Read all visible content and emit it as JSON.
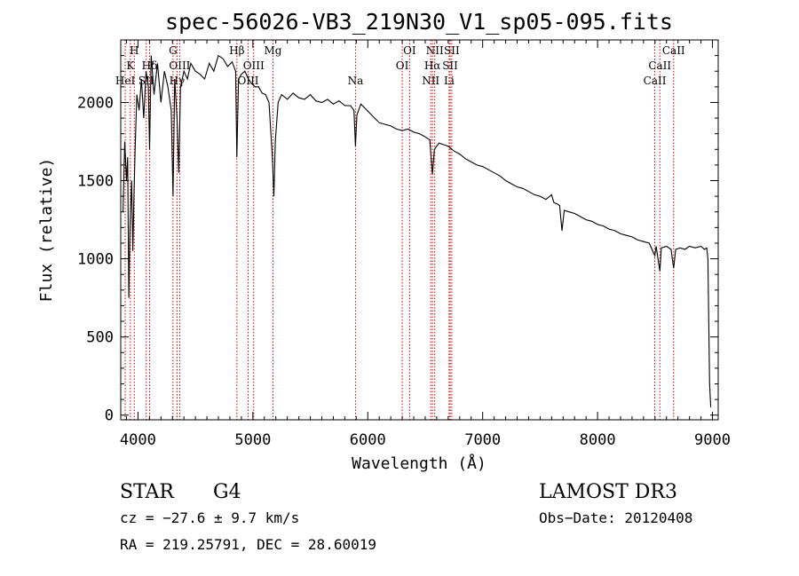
{
  "chart_data": {
    "type": "line",
    "title": "spec-56026-VB3_219N30_V1_sp05-095.fits",
    "xlabel": "Wavelength (Å)",
    "ylabel": "Flux (relative)",
    "xlim": [
      3850,
      9050
    ],
    "ylim": [
      -30,
      2400
    ],
    "xticks": [
      4000,
      5000,
      6000,
      7000,
      8000,
      9000
    ],
    "yticks": [
      0,
      500,
      1000,
      1500,
      2000
    ],
    "series": [
      {
        "name": "spectrum",
        "points": [
          [
            3870,
            1300
          ],
          [
            3885,
            1750
          ],
          [
            3900,
            1500
          ],
          [
            3910,
            1650
          ],
          [
            3920,
            750
          ],
          [
            3930,
            1200
          ],
          [
            3945,
            1500
          ],
          [
            3955,
            1050
          ],
          [
            3965,
            1400
          ],
          [
            3975,
            1700
          ],
          [
            3990,
            2050
          ],
          [
            4010,
            1950
          ],
          [
            4030,
            2150
          ],
          [
            4050,
            1900
          ],
          [
            4070,
            2200
          ],
          [
            4090,
            2100
          ],
          [
            4101,
            1700
          ],
          [
            4115,
            2300
          ],
          [
            4140,
            2050
          ],
          [
            4170,
            2250
          ],
          [
            4200,
            2000
          ],
          [
            4230,
            2200
          ],
          [
            4260,
            2100
          ],
          [
            4290,
            1950
          ],
          [
            4305,
            1400
          ],
          [
            4320,
            2150
          ],
          [
            4340,
            1900
          ],
          [
            4355,
            1550
          ],
          [
            4370,
            2100
          ],
          [
            4400,
            2200
          ],
          [
            4430,
            2150
          ],
          [
            4460,
            2250
          ],
          [
            4500,
            2200
          ],
          [
            4540,
            2180
          ],
          [
            4580,
            2150
          ],
          [
            4620,
            2250
          ],
          [
            4660,
            2200
          ],
          [
            4700,
            2300
          ],
          [
            4740,
            2280
          ],
          [
            4780,
            2230
          ],
          [
            4820,
            2260
          ],
          [
            4850,
            2200
          ],
          [
            4861,
            1650
          ],
          [
            4875,
            2150
          ],
          [
            4900,
            2180
          ],
          [
            4930,
            2200
          ],
          [
            4960,
            2150
          ],
          [
            4990,
            2120
          ],
          [
            5020,
            2100
          ],
          [
            5050,
            2100
          ],
          [
            5080,
            2060
          ],
          [
            5110,
            2050
          ],
          [
            5140,
            2000
          ],
          [
            5170,
            1650
          ],
          [
            5183,
            1400
          ],
          [
            5195,
            1750
          ],
          [
            5220,
            2000
          ],
          [
            5250,
            2050
          ],
          [
            5300,
            2020
          ],
          [
            5350,
            2060
          ],
          [
            5400,
            2030
          ],
          [
            5450,
            2020
          ],
          [
            5500,
            2050
          ],
          [
            5550,
            2010
          ],
          [
            5600,
            2000
          ],
          [
            5650,
            2020
          ],
          [
            5700,
            1990
          ],
          [
            5750,
            2010
          ],
          [
            5800,
            1980
          ],
          [
            5850,
            1980
          ],
          [
            5880,
            1950
          ],
          [
            5893,
            1720
          ],
          [
            5905,
            1920
          ],
          [
            5940,
            1990
          ],
          [
            5980,
            1960
          ],
          [
            6020,
            1930
          ],
          [
            6060,
            1900
          ],
          [
            6100,
            1870
          ],
          [
            6150,
            1860
          ],
          [
            6200,
            1850
          ],
          [
            6250,
            1830
          ],
          [
            6300,
            1820
          ],
          [
            6350,
            1830
          ],
          [
            6400,
            1810
          ],
          [
            6450,
            1800
          ],
          [
            6500,
            1780
          ],
          [
            6540,
            1760
          ],
          [
            6563,
            1540
          ],
          [
            6580,
            1700
          ],
          [
            6620,
            1740
          ],
          [
            6660,
            1730
          ],
          [
            6700,
            1720
          ],
          [
            6750,
            1690
          ],
          [
            6800,
            1670
          ],
          [
            6850,
            1640
          ],
          [
            6900,
            1620
          ],
          [
            6950,
            1600
          ],
          [
            7000,
            1590
          ],
          [
            7050,
            1570
          ],
          [
            7100,
            1550
          ],
          [
            7150,
            1530
          ],
          [
            7200,
            1500
          ],
          [
            7250,
            1480
          ],
          [
            7300,
            1460
          ],
          [
            7350,
            1450
          ],
          [
            7400,
            1430
          ],
          [
            7450,
            1410
          ],
          [
            7500,
            1400
          ],
          [
            7550,
            1380
          ],
          [
            7600,
            1410
          ],
          [
            7620,
            1360
          ],
          [
            7650,
            1350
          ],
          [
            7670,
            1340
          ],
          [
            7690,
            1180
          ],
          [
            7710,
            1310
          ],
          [
            7750,
            1300
          ],
          [
            7800,
            1290
          ],
          [
            7850,
            1270
          ],
          [
            7900,
            1250
          ],
          [
            7950,
            1240
          ],
          [
            8000,
            1220
          ],
          [
            8050,
            1210
          ],
          [
            8100,
            1190
          ],
          [
            8150,
            1180
          ],
          [
            8200,
            1160
          ],
          [
            8250,
            1150
          ],
          [
            8300,
            1140
          ],
          [
            8350,
            1120
          ],
          [
            8400,
            1110
          ],
          [
            8450,
            1100
          ],
          [
            8498,
            1020
          ],
          [
            8510,
            1080
          ],
          [
            8542,
            920
          ],
          [
            8555,
            1070
          ],
          [
            8600,
            1080
          ],
          [
            8640,
            1060
          ],
          [
            8662,
            940
          ],
          [
            8680,
            1060
          ],
          [
            8720,
            1070
          ],
          [
            8760,
            1060
          ],
          [
            8800,
            1080
          ],
          [
            8850,
            1070
          ],
          [
            8900,
            1080
          ],
          [
            8930,
            1060
          ],
          [
            8950,
            1070
          ],
          [
            8960,
            1000
          ],
          [
            8975,
            200
          ],
          [
            8985,
            50
          ]
        ]
      }
    ],
    "line_markers": [
      {
        "label": "H",
        "wavelength": 3968,
        "row": 0
      },
      {
        "label": "K",
        "wavelength": 3934,
        "row": 1
      },
      {
        "label": "HeI",
        "wavelength": 3889,
        "row": 2
      },
      {
        "label": "Hδ",
        "wavelength": 4101,
        "row": 1
      },
      {
        "label": "SII",
        "wavelength": 4072,
        "row": 2
      },
      {
        "label": "G",
        "wavelength": 4305,
        "row": 0
      },
      {
        "label": "OIII",
        "wavelength": 4363,
        "row": 1
      },
      {
        "label": "Hγ",
        "wavelength": 4340,
        "row": 2
      },
      {
        "label": "Hβ",
        "wavelength": 4861,
        "row": 0
      },
      {
        "label": "OIII",
        "wavelength": 5007,
        "row": 1
      },
      {
        "label": "OIII",
        "wavelength": 4959,
        "row": 2
      },
      {
        "label": "Mg",
        "wavelength": 5175,
        "row": 0
      },
      {
        "label": "Na",
        "wavelength": 5893,
        "row": 2
      },
      {
        "label": "OI",
        "wavelength": 6364,
        "row": 0
      },
      {
        "label": "OI",
        "wavelength": 6300,
        "row": 1
      },
      {
        "label": "NII",
        "wavelength": 6583,
        "row": 0
      },
      {
        "label": "SII",
        "wavelength": 6731,
        "row": 0
      },
      {
        "label": "Hα",
        "wavelength": 6563,
        "row": 1
      },
      {
        "label": "SII",
        "wavelength": 6717,
        "row": 1
      },
      {
        "label": "NII",
        "wavelength": 6548,
        "row": 2
      },
      {
        "label": "Li",
        "wavelength": 6708,
        "row": 2
      },
      {
        "label": "CaII",
        "wavelength": 8662,
        "row": 0
      },
      {
        "label": "CaII",
        "wavelength": 8542,
        "row": 1
      },
      {
        "label": "CaII",
        "wavelength": 8498,
        "row": 2
      }
    ],
    "colors": {
      "spectrum": "#000000",
      "marker": "#cc0000"
    }
  },
  "info": {
    "class": "STAR",
    "subclass": "G4",
    "survey": "LAMOST DR3",
    "cz": "cz = −27.6 ± 9.7 km/s",
    "obsdate": "Obs−Date: 20120408",
    "radec": "RA = 219.25791, DEC =  28.60019"
  }
}
